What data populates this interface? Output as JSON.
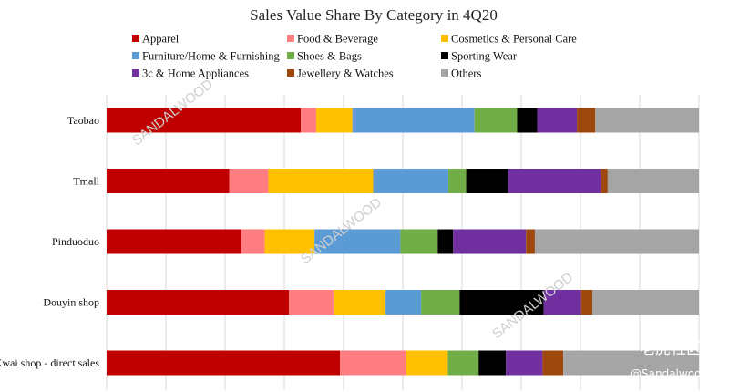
{
  "chart_data": {
    "type": "bar",
    "orientation": "horizontal",
    "stacked": true,
    "title": "Sales Value Share By Category in 4Q20",
    "categories": [
      "Taobao",
      "Tmall",
      "Pinduoduo",
      "Douyin shop",
      "Kwai shop - direct sales"
    ],
    "xlim": [
      0,
      100
    ],
    "grid": true,
    "legend_position": "top",
    "series": [
      {
        "name": "Apparel",
        "color": "#c00000",
        "values": [
          32.8,
          20.7,
          22.7,
          30.8,
          39.4
        ]
      },
      {
        "name": "Food & Beverage",
        "color": "#ff7c80",
        "values": [
          2.6,
          6.6,
          4.0,
          7.5,
          11.2
        ]
      },
      {
        "name": "Cosmetics & Personal Care",
        "color": "#ffc000",
        "values": [
          6.1,
          17.7,
          8.4,
          8.8,
          7.0
        ]
      },
      {
        "name": "Furniture/Home & Furnishing",
        "color": "#5b9bd5",
        "values": [
          20.6,
          12.7,
          14.5,
          6.0,
          0
        ]
      },
      {
        "name": "Shoes & Bags",
        "color": "#70ad47",
        "values": [
          7.2,
          3.0,
          6.3,
          6.5,
          5.2
        ]
      },
      {
        "name": "Sporting Wear",
        "color": "#000000",
        "values": [
          3.4,
          7.1,
          2.6,
          14.2,
          4.6
        ]
      },
      {
        "name": "3c & Home Appliances",
        "color": "#7030a0",
        "values": [
          6.7,
          15.6,
          12.3,
          6.3,
          6.2
        ]
      },
      {
        "name": "Jewellery & Watches",
        "color": "#9e480e",
        "values": [
          3.1,
          1.2,
          1.5,
          1.9,
          3.5
        ]
      },
      {
        "name": "Others",
        "color": "#a5a5a5",
        "values": [
          17.5,
          15.4,
          27.7,
          18.0,
          22.9
        ]
      }
    ]
  },
  "watermarks": {
    "brand": "SANDALWOOD",
    "corner_community": "老虎社区",
    "corner_handle": "@Sandalwood"
  }
}
